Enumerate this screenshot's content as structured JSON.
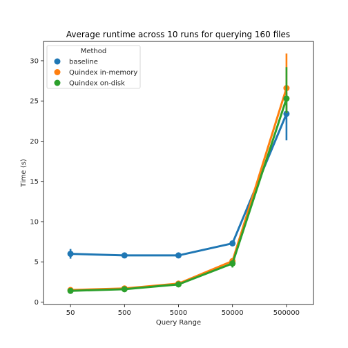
{
  "chart_data": {
    "type": "line",
    "title": "Average runtime across 10 runs for querying 160 files",
    "xlabel": "Query Range",
    "ylabel": "Time (s)",
    "categories": [
      "50",
      "500",
      "5000",
      "50000",
      "500000"
    ],
    "yticks": [
      "0",
      "5",
      "10",
      "15",
      "20",
      "25",
      "30"
    ],
    "ylim": [
      -0.3,
      32.4
    ],
    "grid": false,
    "legend": {
      "title": "Method",
      "placement": "top-left"
    },
    "series": [
      {
        "name": "baseline",
        "color": "#1f77b4",
        "values": [
          6.0,
          5.8,
          5.8,
          7.3,
          23.4
        ],
        "err_low": [
          5.4,
          5.6,
          5.6,
          7.0,
          20.1
        ],
        "err_high": [
          6.6,
          6.0,
          6.0,
          7.6,
          26.0
        ]
      },
      {
        "name": "Quindex in-memory",
        "color": "#ff7f0e",
        "values": [
          1.5,
          1.7,
          2.3,
          5.1,
          26.6
        ],
        "err_low": [
          1.4,
          1.6,
          2.2,
          4.7,
          23.5
        ],
        "err_high": [
          1.6,
          1.8,
          2.4,
          5.4,
          30.9
        ]
      },
      {
        "name": "Quindex on-disk",
        "color": "#2ca02c",
        "values": [
          1.4,
          1.6,
          2.2,
          4.8,
          25.3
        ],
        "err_low": [
          1.3,
          1.5,
          2.1,
          4.3,
          23.5
        ],
        "err_high": [
          1.5,
          1.7,
          2.3,
          5.2,
          29.2
        ]
      }
    ]
  }
}
